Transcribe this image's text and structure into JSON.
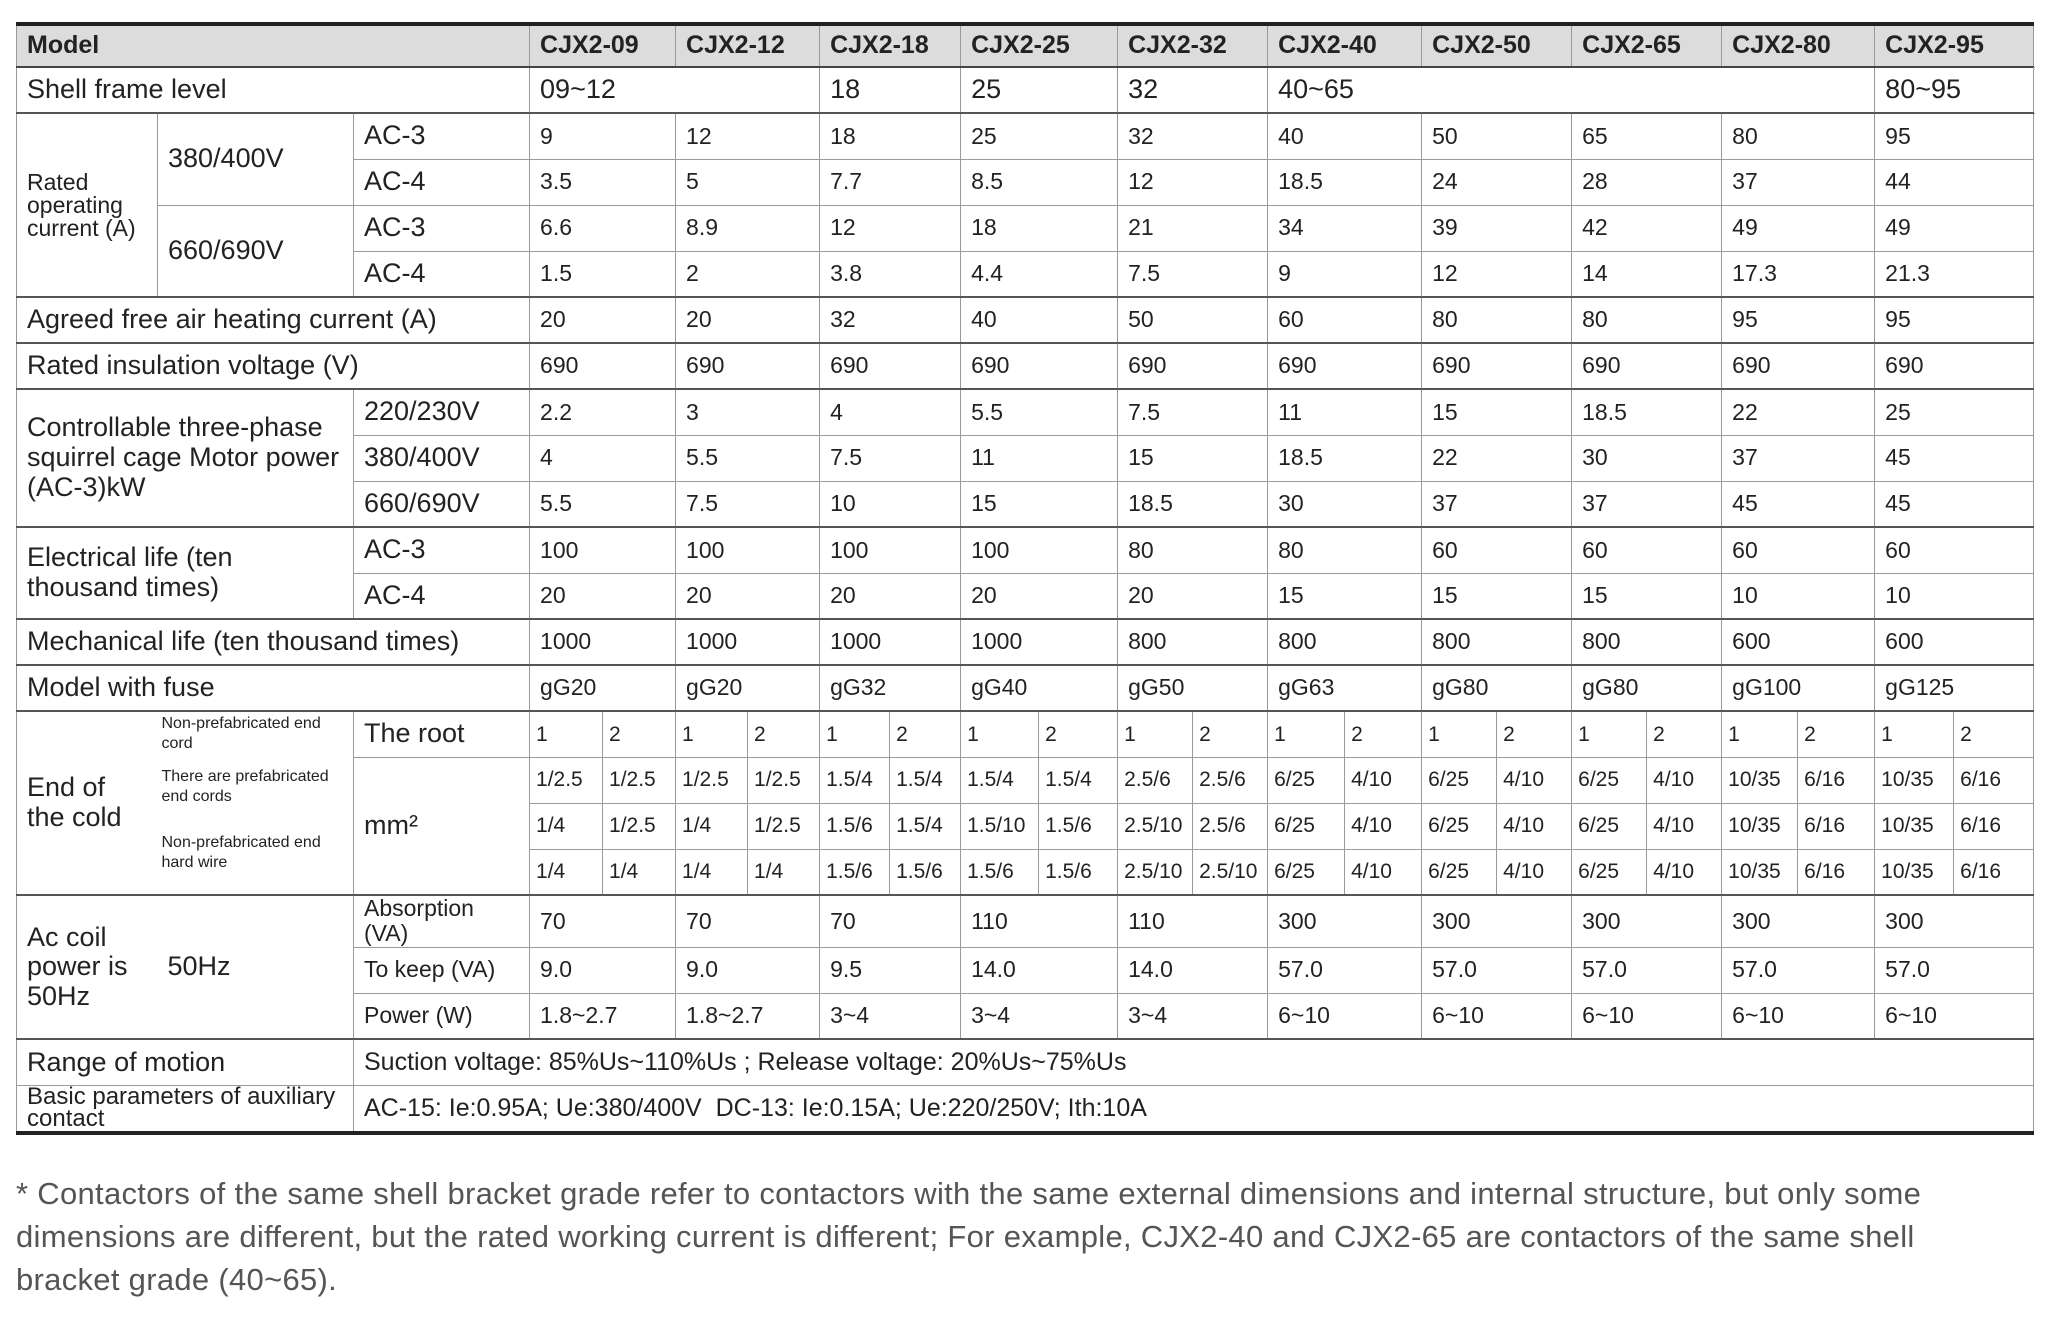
{
  "model_row": {
    "label": "Model",
    "models": [
      "CJX2-09",
      "CJX2-12",
      "CJX2-18",
      "CJX2-25",
      "CJX2-32",
      "CJX2-40",
      "CJX2-50",
      "CJX2-65",
      "CJX2-80",
      "CJX2-95"
    ]
  },
  "shell_frame": {
    "label": "Shell frame level",
    "values": [
      "09~12",
      "18",
      "25",
      "32",
      "40~65",
      "80~95"
    ]
  },
  "rated_current": {
    "label": "Rated operating current (A)",
    "groups": [
      {
        "voltage": "380/400V",
        "rows": [
          {
            "category": "AC-3",
            "values": [
              "9",
              "12",
              "18",
              "25",
              "32",
              "40",
              "50",
              "65",
              "80",
              "95"
            ]
          },
          {
            "category": "AC-4",
            "values": [
              "3.5",
              "5",
              "7.7",
              "8.5",
              "12",
              "18.5",
              "24",
              "28",
              "37",
              "44"
            ]
          }
        ]
      },
      {
        "voltage": "660/690V",
        "rows": [
          {
            "category": "AC-3",
            "values": [
              "6.6",
              "8.9",
              "12",
              "18",
              "21",
              "34",
              "39",
              "42",
              "49",
              "49"
            ]
          },
          {
            "category": "AC-4",
            "values": [
              "1.5",
              "2",
              "3.8",
              "4.4",
              "7.5",
              "9",
              "12",
              "14",
              "17.3",
              "21.3"
            ]
          }
        ]
      }
    ]
  },
  "agreed_current": {
    "label": "Agreed free air heating current (A)",
    "values": [
      "20",
      "20",
      "32",
      "40",
      "50",
      "60",
      "80",
      "80",
      "95",
      "95"
    ]
  },
  "insulation_voltage": {
    "label": "Rated insulation voltage (V)",
    "values": [
      "690",
      "690",
      "690",
      "690",
      "690",
      "690",
      "690",
      "690",
      "690",
      "690"
    ]
  },
  "motor_power": {
    "label": "Controllable three-phase squirrel cage Motor power (AC-3)kW",
    "rows": [
      {
        "voltage": "220/230V",
        "values": [
          "2.2",
          "3",
          "4",
          "5.5",
          "7.5",
          "11",
          "15",
          "18.5",
          "22",
          "25"
        ]
      },
      {
        "voltage": "380/400V",
        "values": [
          "4",
          "5.5",
          "7.5",
          "11",
          "15",
          "18.5",
          "22",
          "30",
          "37",
          "45"
        ]
      },
      {
        "voltage": "660/690V",
        "values": [
          "5.5",
          "7.5",
          "10",
          "15",
          "18.5",
          "30",
          "37",
          "37",
          "45",
          "45"
        ]
      }
    ]
  },
  "electrical_life": {
    "label": "Electrical life (ten thousand times)",
    "rows": [
      {
        "category": "AC-3",
        "values": [
          "100",
          "100",
          "100",
          "100",
          "80",
          "80",
          "60",
          "60",
          "60",
          "60"
        ]
      },
      {
        "category": "AC-4",
        "values": [
          "20",
          "20",
          "20",
          "20",
          "20",
          "15",
          "15",
          "15",
          "10",
          "10"
        ]
      }
    ]
  },
  "mechanical_life": {
    "label": "Mechanical life (ten thousand times)",
    "values": [
      "1000",
      "1000",
      "1000",
      "1000",
      "800",
      "800",
      "800",
      "800",
      "600",
      "600"
    ]
  },
  "fuse": {
    "label": "Model with fuse",
    "values": [
      "gG20",
      "gG20",
      "gG32",
      "gG40",
      "gG50",
      "gG63",
      "gG80",
      "gG80",
      "gG100",
      "gG125"
    ]
  },
  "end_cold": {
    "label": "End of the cold",
    "types": [
      "Non-prefabricated end cord",
      "There are prefabricated end cords",
      "Non-prefabricated end hard wire"
    ],
    "root_label": "The root",
    "unit": "mm²",
    "root_values": [
      "1",
      "2",
      "1",
      "2",
      "1",
      "2",
      "1",
      "2",
      "1",
      "2",
      "1",
      "2",
      "1",
      "2",
      "1",
      "2",
      "1",
      "2",
      "1",
      "2"
    ],
    "rows": [
      [
        "1/2.5",
        "1/2.5",
        "1/2.5",
        "1/2.5",
        "1.5/4",
        "1.5/4",
        "1.5/4",
        "1.5/4",
        "2.5/6",
        "2.5/6",
        "6/25",
        "4/10",
        "6/25",
        "4/10",
        "6/25",
        "4/10",
        "10/35",
        "6/16",
        "10/35",
        "6/16"
      ],
      [
        "1/4",
        "1/2.5",
        "1/4",
        "1/2.5",
        "1.5/6",
        "1.5/4",
        "1.5/10",
        "1.5/6",
        "2.5/10",
        "2.5/6",
        "6/25",
        "4/10",
        "6/25",
        "4/10",
        "6/25",
        "4/10",
        "10/35",
        "6/16",
        "10/35",
        "6/16"
      ],
      [
        "1/4",
        "1/4",
        "1/4",
        "1/4",
        "1.5/6",
        "1.5/6",
        "1.5/6",
        "1.5/6",
        "2.5/10",
        "2.5/10",
        "6/25",
        "4/10",
        "6/25",
        "4/10",
        "6/25",
        "4/10",
        "10/35",
        "6/16",
        "10/35",
        "6/16"
      ]
    ]
  },
  "coil_power": {
    "label": "Ac coil power is 50Hz",
    "frequency": "50Hz",
    "rows": [
      {
        "category": "Absorption (VA)",
        "values": [
          "70",
          "70",
          "70",
          "110",
          "110",
          "300",
          "300",
          "300",
          "300",
          "300"
        ]
      },
      {
        "category": "To keep (VA)",
        "values": [
          "9.0",
          "9.0",
          "9.5",
          "14.0",
          "14.0",
          "57.0",
          "57.0",
          "57.0",
          "57.0",
          "57.0"
        ]
      },
      {
        "category": "Power (W)",
        "values": [
          "1.8~2.7",
          "1.8~2.7",
          "3~4",
          "3~4",
          "3~4",
          "6~10",
          "6~10",
          "6~10",
          "6~10",
          "6~10"
        ]
      }
    ]
  },
  "range_of_motion": {
    "label": "Range of motion",
    "text": "Suction voltage: 85%Us~110%Us ; Release voltage: 20%Us~75%Us"
  },
  "auxiliary_contact": {
    "label": "Basic parameters of auxiliary contact",
    "text": "AC-15: Ie:0.95A; Ue:380/400V  DC-13: Ie:0.15A; Ue:220/250V; Ith:10A"
  },
  "footnote": "* Contactors of the same shell bracket grade refer to contactors with the same external dimensions and internal structure, but only some dimensions are different, but the rated working current is different; For example, CJX2-40 and CJX2-65 are contactors of the same shell bracket grade (40~65)."
}
